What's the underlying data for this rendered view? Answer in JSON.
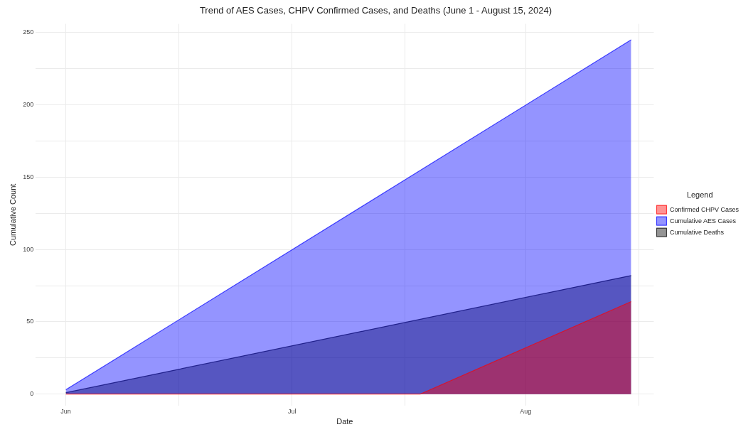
{
  "chart_data": {
    "type": "area",
    "title": "Trend of AES Cases, CHPV Confirmed Cases, and Deaths (June 1 - August 15, 2024)",
    "xlabel": "Date",
    "ylabel": "Cumulative Count",
    "legend_title": "Legend",
    "legend": "right",
    "grid": true,
    "xlim": [
      "2024-05-28",
      "2024-08-18"
    ],
    "xticks": [
      {
        "value": "2024-06-01",
        "label": "Jun"
      },
      {
        "value": "2024-06-16",
        "label": null
      },
      {
        "value": "2024-07-01",
        "label": "Jul"
      },
      {
        "value": "2024-07-16",
        "label": null
      },
      {
        "value": "2024-08-01",
        "label": "Aug"
      },
      {
        "value": "2024-08-16",
        "label": null
      }
    ],
    "ylim": [
      -8,
      256
    ],
    "yticks": [
      0,
      {
        "value": 25,
        "label": null
      },
      50,
      {
        "value": 75,
        "label": null
      },
      100,
      {
        "value": 125,
        "label": null
      },
      150,
      {
        "value": 175,
        "label": null
      },
      200,
      {
        "value": 225,
        "label": null
      },
      250
    ],
    "series": [
      {
        "name": "Confirmed CHPV Cases",
        "color": "#ff0000",
        "x": [
          "2024-06-01",
          "2024-07-18",
          "2024-08-15"
        ],
        "values": [
          0,
          0,
          64
        ]
      },
      {
        "name": "Cumulative AES Cases",
        "color": "#0000ff",
        "x": [
          "2024-06-01",
          "2024-08-15"
        ],
        "values": [
          3,
          245
        ]
      },
      {
        "name": "Cumulative Deaths",
        "color": "#000000",
        "x": [
          "2024-06-01",
          "2024-08-15"
        ],
        "values": [
          1,
          82
        ]
      }
    ]
  }
}
